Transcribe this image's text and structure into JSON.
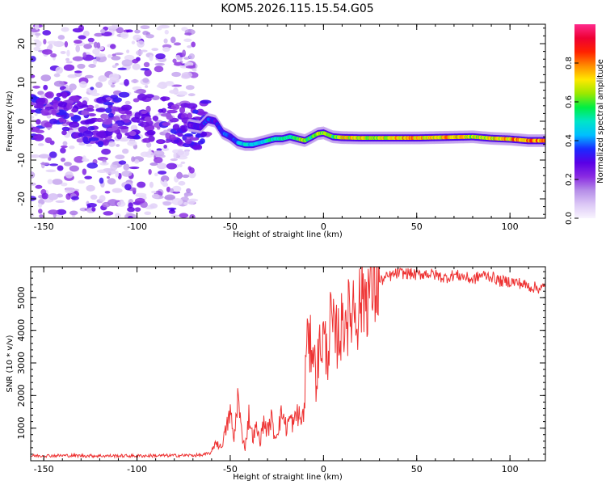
{
  "title": "KOM5.2026.115.15.54.G05",
  "colors": {
    "snr_line": "#ee3333",
    "axis": "#000000",
    "background": "#ffffff"
  },
  "chart_data": [
    {
      "type": "heatmap",
      "panel": "top",
      "xlabel": "Height of straight line (km)",
      "ylabel": "Frequency (Hz)",
      "xlim": [
        -157,
        119
      ],
      "ylim": [
        -25,
        25
      ],
      "xticks": [
        -150,
        -100,
        -50,
        0,
        50,
        100
      ],
      "yticks": [
        -20,
        -10,
        0,
        10,
        20
      ],
      "colorbar": {
        "label": "Normalized spectral amplitude",
        "range": [
          0,
          1
        ],
        "ticks": [
          "0.0",
          "0.2",
          "0.4",
          "0.6",
          "0.8"
        ],
        "tick_values": [
          0.0,
          0.2,
          0.4,
          0.6,
          0.8
        ],
        "colormap": [
          "#f8f4fe",
          "#dcc8f6",
          "#b68ee8",
          "#8a2be2",
          "#5a00e6",
          "#1a2aff",
          "#00bfff",
          "#00e5c8",
          "#00ee44",
          "#9be800",
          "#ffe800",
          "#ff8c00",
          "#ff2200",
          "#ee0033",
          "#ff2a8c"
        ]
      },
      "signal_track": {
        "description_free": true,
        "height_km": [
          -157,
          -140,
          -125,
          -110,
          -100,
          -90,
          -80,
          -72,
          -66,
          -62,
          -58,
          -54,
          -50,
          -46,
          -42,
          -38,
          -34,
          -30,
          -26,
          -22,
          -18,
          -14,
          -10,
          -6,
          -3,
          0,
          5,
          10,
          20,
          30,
          40,
          50,
          60,
          70,
          80,
          90,
          100,
          110,
          119
        ],
        "frequency_hz": [
          0.5,
          1.5,
          -0.5,
          1.0,
          0.5,
          1.0,
          0.0,
          -1.0,
          -1.5,
          0.5,
          0.0,
          -3.0,
          -4.0,
          -5.5,
          -6.0,
          -6.0,
          -5.5,
          -5.0,
          -4.5,
          -4.5,
          -4.0,
          -4.5,
          -5.0,
          -4.0,
          -3.2,
          -3.0,
          -4.0,
          -4.2,
          -4.3,
          -4.3,
          -4.3,
          -4.3,
          -4.2,
          -4.1,
          -4.0,
          -4.4,
          -4.6,
          -5.0,
          -5.0
        ],
        "amplitude": [
          0.25,
          0.3,
          0.3,
          0.3,
          0.3,
          0.3,
          0.35,
          0.3,
          0.35,
          0.4,
          0.35,
          0.4,
          0.4,
          0.45,
          0.55,
          0.5,
          0.5,
          0.55,
          0.6,
          0.55,
          0.6,
          0.7,
          0.75,
          0.6,
          0.8,
          0.7,
          0.65,
          0.8,
          0.8,
          0.75,
          0.85,
          0.85,
          0.8,
          0.85,
          0.75,
          0.8,
          0.85,
          0.9,
          0.95
        ]
      }
    },
    {
      "type": "line",
      "panel": "bottom",
      "xlabel": "Height of straight line (km)",
      "ylabel": "SNR (10 * v/v)",
      "xlim": [
        -157,
        119
      ],
      "ylim": [
        0,
        5950
      ],
      "xticks": [
        -150,
        -100,
        -50,
        0,
        50,
        100
      ],
      "yticks": [
        1000,
        2000,
        3000,
        4000,
        5000
      ],
      "series": [
        {
          "name": "SNR",
          "x": [
            -157,
            -140,
            -120,
            -100,
            -80,
            -65,
            -60,
            -58,
            -55,
            -52,
            -50,
            -48,
            -46,
            -44,
            -42,
            -40,
            -38,
            -36,
            -34,
            -32,
            -30,
            -28,
            -26,
            -24,
            -22,
            -20,
            -18,
            -16,
            -14,
            -12,
            -10,
            -9,
            -8,
            -6,
            -4,
            -2,
            0,
            2,
            4,
            6,
            8,
            10,
            12,
            14,
            16,
            18,
            20,
            25,
            30,
            35,
            40,
            45,
            50,
            55,
            60,
            65,
            70,
            75,
            80,
            85,
            90,
            95,
            100,
            105,
            110,
            115,
            119
          ],
          "y": [
            150,
            160,
            150,
            150,
            160,
            170,
            250,
            600,
            400,
            1000,
            1500,
            600,
            2000,
            900,
            400,
            1400,
            700,
            1000,
            600,
            1200,
            900,
            1300,
            700,
            1100,
            1500,
            1000,
            1300,
            1100,
            1500,
            1200,
            1650,
            4500,
            3200,
            3800,
            2500,
            3500,
            3800,
            3200,
            4300,
            3700,
            3900,
            4100,
            4600,
            4300,
            4900,
            4500,
            5000,
            5300,
            5500,
            5650,
            5750,
            5750,
            5700,
            5750,
            5700,
            5600,
            5700,
            5650,
            5550,
            5700,
            5650,
            5500,
            5500,
            5450,
            5350,
            5300,
            5300
          ]
        }
      ]
    }
  ]
}
